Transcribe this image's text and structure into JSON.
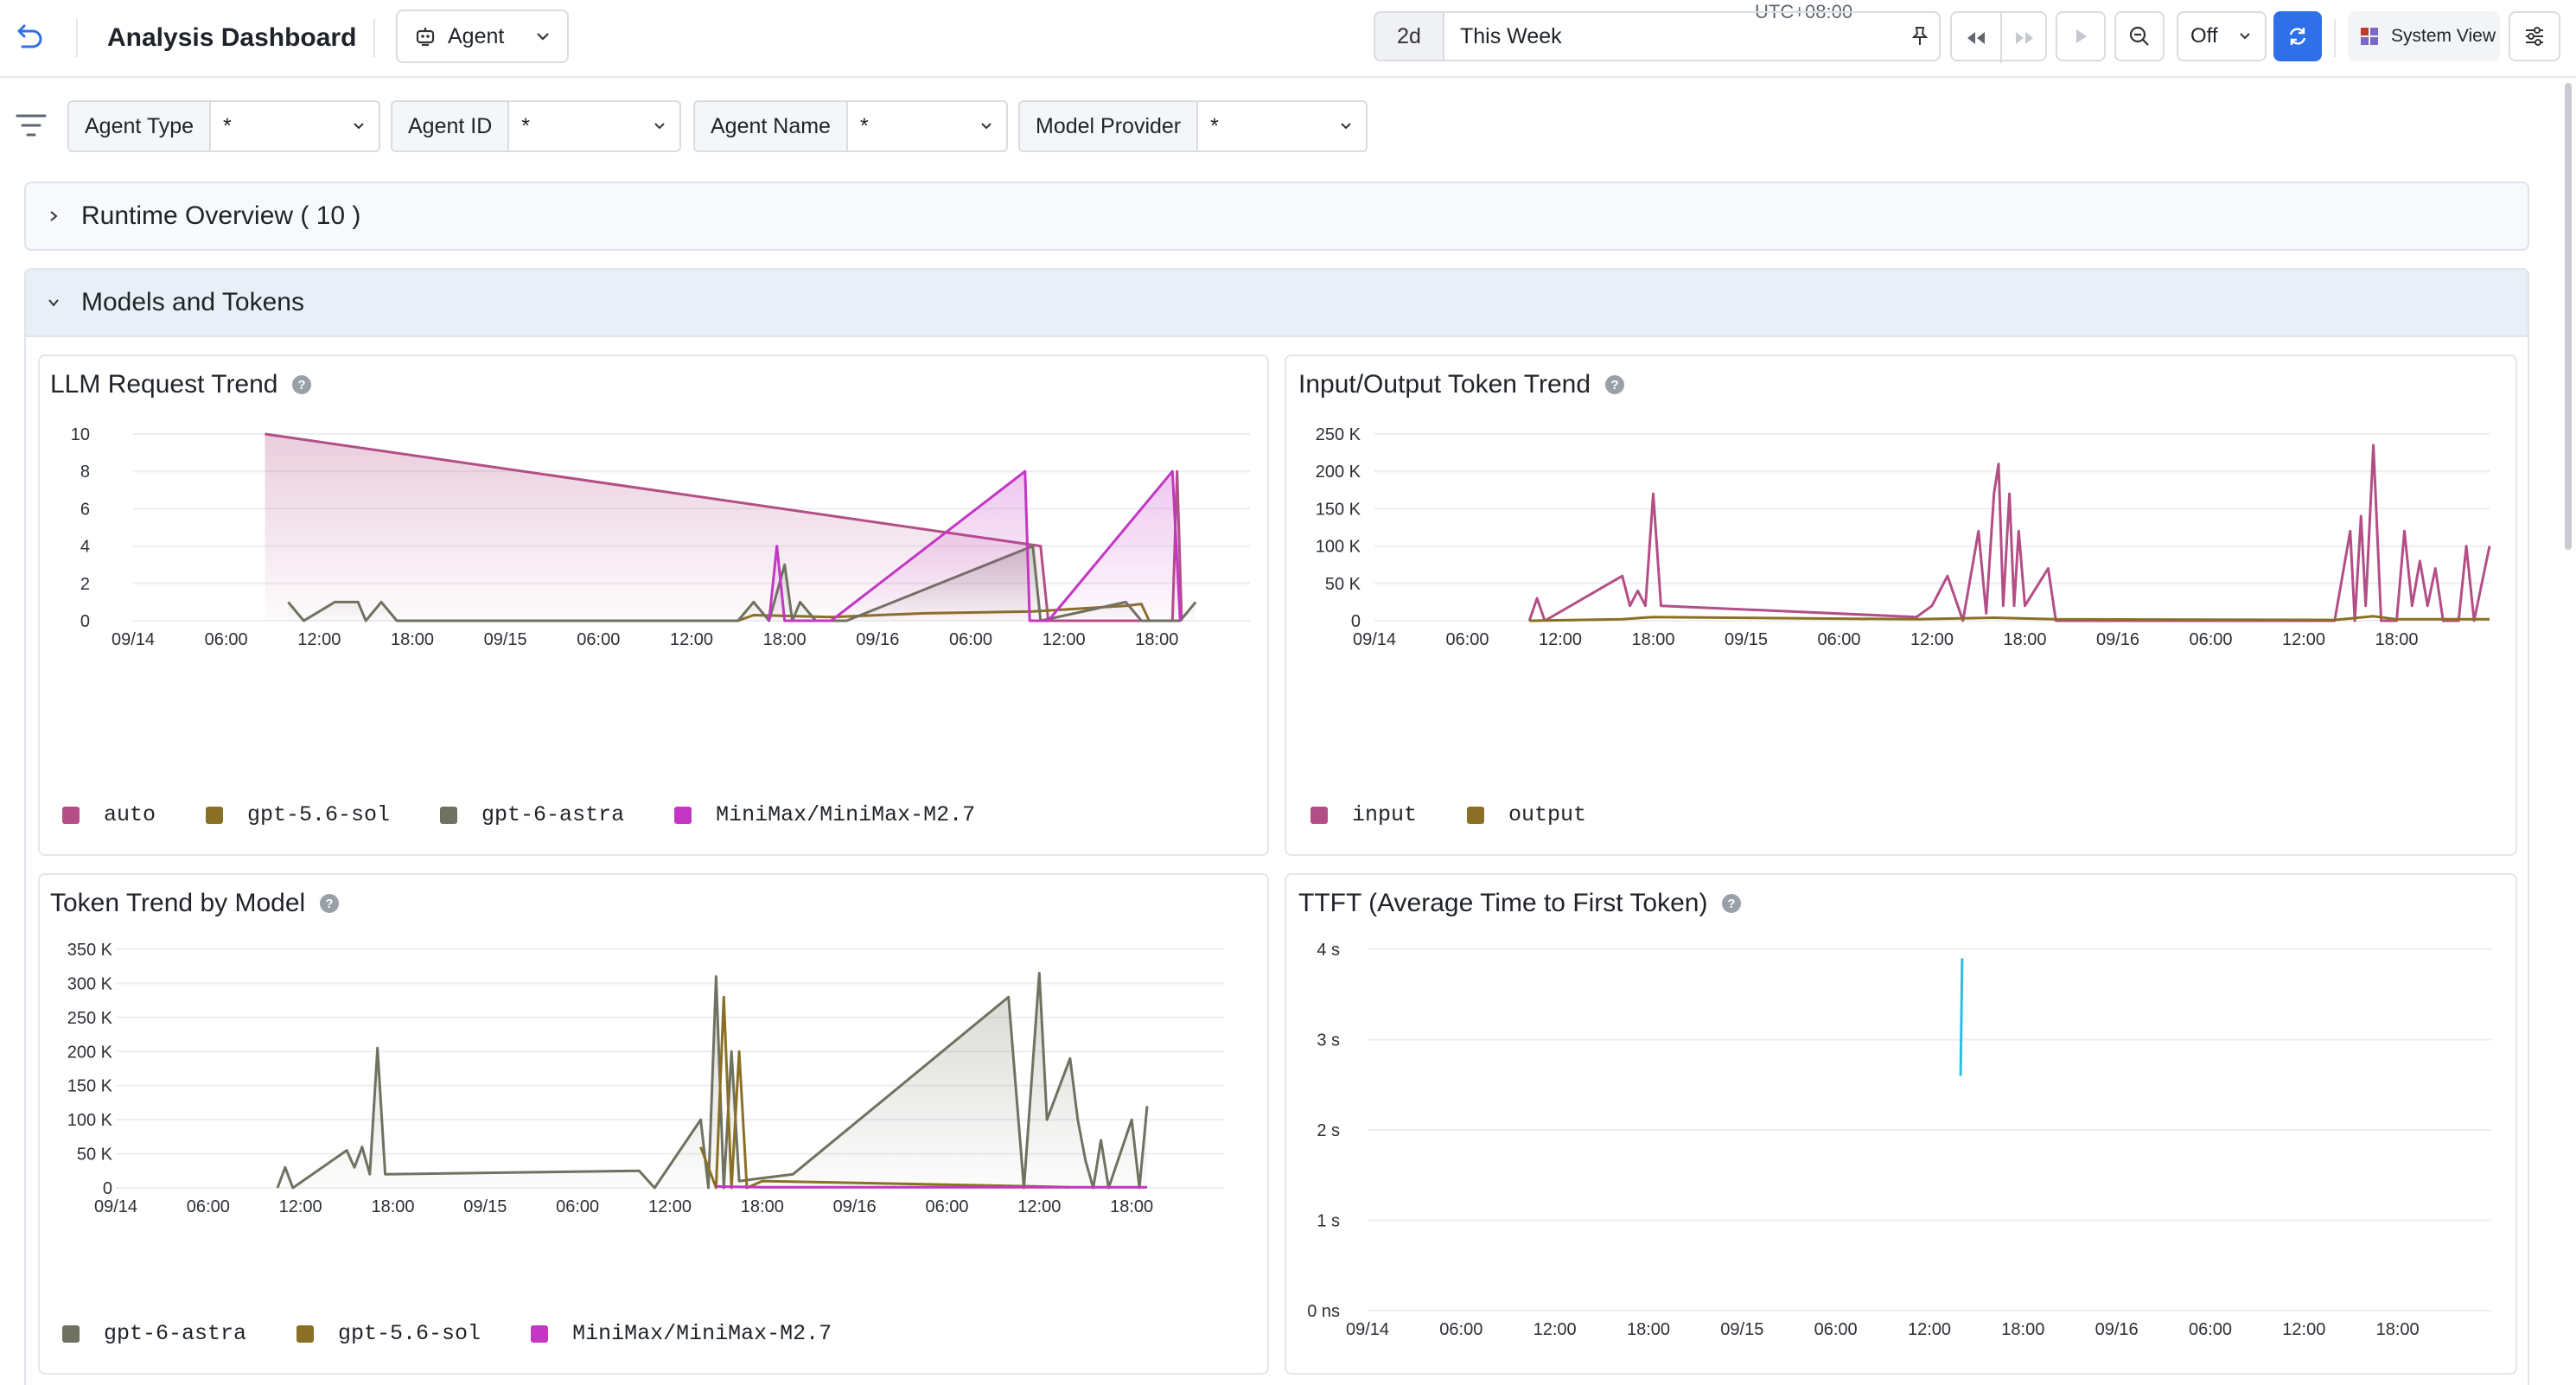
{
  "header": {
    "title": "Analysis Dashboard",
    "entity_select": "Agent",
    "timezone": "UTC+08:00",
    "time_range_short": "2d",
    "time_range_label": "This Week",
    "auto_refresh": "Off",
    "system_view_label": "System View"
  },
  "icons": {
    "back": "undo-arrow-icon",
    "entity": "robot-icon",
    "pin": "pin-icon",
    "rewind": "rewind-icon",
    "fast_forward": "fast-forward-icon",
    "play": "play-icon",
    "zoom_out": "zoom-out-icon",
    "refresh": "refresh-icon",
    "system_view": "grid-icon",
    "settings": "sliders-icon",
    "filter": "filter-icon"
  },
  "filters": [
    {
      "label": "Agent Type",
      "value": "*"
    },
    {
      "label": "Agent ID",
      "value": "*"
    },
    {
      "label": "Agent Name",
      "value": "*"
    },
    {
      "label": "Model Provider",
      "value": "*"
    }
  ],
  "sections": {
    "runtime": {
      "title": "Runtime Overview ( 10 )",
      "expanded": false
    },
    "models": {
      "title": "Models and Tokens",
      "expanded": true
    }
  },
  "colors": {
    "auto": "#b34e86",
    "gpt_5_6_sol": "#8a7024",
    "gpt_6_astra": "#6f7260",
    "minimax": "#c436c4",
    "input": "#b34e86",
    "output": "#8a7024",
    "ttft": "#2fbde0",
    "accent": "#2f6fe8"
  },
  "panels": {
    "llm_request": {
      "title": "LLM Request Trend"
    },
    "io_token": {
      "title": "Input/Output Token Trend"
    },
    "token_by_model": {
      "title": "Token Trend by Model"
    },
    "ttft": {
      "title": "TTFT (Average Time to First Token)"
    }
  },
  "chart_data": [
    {
      "type": "area",
      "title": "LLM Request Trend",
      "x_tick_labels": [
        "09/14",
        "06:00",
        "12:00",
        "18:00",
        "09/15",
        "06:00",
        "12:00",
        "18:00",
        "09/16",
        "06:00",
        "12:00",
        "18:00"
      ],
      "y_tick_labels": [
        "0",
        "2",
        "4",
        "6",
        "8",
        "10"
      ],
      "ylim": [
        0,
        10
      ],
      "x_unit": "hours since 09/14 00:00",
      "series": [
        {
          "name": "auto",
          "points": [
            [
              8.5,
              10
            ],
            [
              58.5,
              4
            ],
            [
              59,
              0
            ],
            [
              67,
              0
            ],
            [
              67.3,
              8
            ],
            [
              67.6,
              0
            ]
          ]
        },
        {
          "name": "gpt-5.6-sol",
          "points": [
            [
              39,
              0
            ],
            [
              40,
              0.3
            ],
            [
              45,
              0.2
            ],
            [
              51,
              0.4
            ],
            [
              58,
              0.5
            ],
            [
              64,
              0.8
            ],
            [
              65,
              0.9
            ],
            [
              65.5,
              0
            ]
          ]
        },
        {
          "name": "gpt-6-astra",
          "points": [
            [
              10,
              1
            ],
            [
              11,
              0
            ],
            [
              13,
              1
            ],
            [
              14.5,
              1
            ],
            [
              15,
              0
            ],
            [
              16,
              1
            ],
            [
              17,
              0
            ],
            [
              39,
              0
            ],
            [
              40,
              1
            ],
            [
              41,
              0
            ],
            [
              42,
              3
            ],
            [
              42.5,
              0
            ],
            [
              43,
              1
            ],
            [
              44,
              0
            ],
            [
              46,
              0
            ],
            [
              58,
              4
            ],
            [
              58.5,
              0
            ],
            [
              64,
              1
            ],
            [
              65,
              0
            ],
            [
              67.5,
              0
            ],
            [
              68.5,
              1
            ]
          ]
        },
        {
          "name": "MiniMax/MiniMax-M2.7",
          "points": [
            [
              41,
              0
            ],
            [
              41.5,
              4
            ],
            [
              42,
              0
            ],
            [
              45,
              0
            ],
            [
              57.5,
              8
            ],
            [
              57.8,
              0
            ],
            [
              59,
              0
            ],
            [
              67,
              8
            ],
            [
              67.5,
              0
            ]
          ]
        }
      ]
    },
    {
      "type": "line",
      "title": "Input/Output Token Trend",
      "x_tick_labels": [
        "09/14",
        "06:00",
        "12:00",
        "18:00",
        "09/15",
        "06:00",
        "12:00",
        "18:00",
        "09/16",
        "06:00",
        "12:00",
        "18:00"
      ],
      "y_tick_labels": [
        "0",
        "50 K",
        "100 K",
        "150 K",
        "200 K",
        "250 K"
      ],
      "ylim": [
        0,
        250000
      ],
      "x_unit": "hours since 09/14 00:00",
      "series": [
        {
          "name": "input",
          "points": [
            [
              10,
              0
            ],
            [
              10.5,
              30000
            ],
            [
              11,
              0
            ],
            [
              16,
              60000
            ],
            [
              16.5,
              20000
            ],
            [
              17,
              40000
            ],
            [
              17.5,
              20000
            ],
            [
              18,
              170000
            ],
            [
              18.5,
              20000
            ],
            [
              35,
              5000
            ],
            [
              36,
              20000
            ],
            [
              37,
              60000
            ],
            [
              38,
              0
            ],
            [
              39,
              120000
            ],
            [
              39.5,
              10000
            ],
            [
              40,
              170000
            ],
            [
              40.3,
              210000
            ],
            [
              40.6,
              20000
            ],
            [
              41,
              170000
            ],
            [
              41.3,
              20000
            ],
            [
              41.6,
              120000
            ],
            [
              42,
              20000
            ],
            [
              43.5,
              70000
            ],
            [
              44,
              0
            ],
            [
              62,
              0
            ],
            [
              63,
              120000
            ],
            [
              63.3,
              0
            ],
            [
              63.7,
              140000
            ],
            [
              64,
              20000
            ],
            [
              64.5,
              235000
            ],
            [
              65,
              0
            ],
            [
              66,
              0
            ],
            [
              66.5,
              120000
            ],
            [
              67,
              20000
            ],
            [
              67.5,
              80000
            ],
            [
              68,
              20000
            ],
            [
              68.5,
              70000
            ],
            [
              69,
              0
            ],
            [
              70,
              0
            ],
            [
              70.5,
              100000
            ],
            [
              71,
              0
            ],
            [
              72,
              100000
            ]
          ]
        },
        {
          "name": "output",
          "points": [
            [
              10,
              0
            ],
            [
              16,
              2000
            ],
            [
              18,
              5000
            ],
            [
              35,
              2000
            ],
            [
              40,
              4000
            ],
            [
              44,
              2000
            ],
            [
              62,
              1000
            ],
            [
              64.5,
              6000
            ],
            [
              66,
              2000
            ],
            [
              72,
              2000
            ]
          ]
        }
      ]
    },
    {
      "type": "area",
      "title": "Token Trend by Model",
      "x_tick_labels": [
        "09/14",
        "06:00",
        "12:00",
        "18:00",
        "09/15",
        "06:00",
        "12:00",
        "18:00",
        "09/16",
        "06:00",
        "12:00",
        "18:00"
      ],
      "y_tick_labels": [
        "0",
        "50 K",
        "100 K",
        "150 K",
        "200 K",
        "250 K",
        "300 K",
        "350 K"
      ],
      "ylim": [
        0,
        350000
      ],
      "x_unit": "hours since 09/14 00:00",
      "series": [
        {
          "name": "gpt-6-astra",
          "points": [
            [
              10.5,
              0
            ],
            [
              11,
              30000
            ],
            [
              11.5,
              0
            ],
            [
              15,
              55000
            ],
            [
              15.5,
              30000
            ],
            [
              16,
              60000
            ],
            [
              16.5,
              20000
            ],
            [
              17,
              205000
            ],
            [
              17.5,
              20000
            ],
            [
              34,
              25000
            ],
            [
              35,
              0
            ],
            [
              38,
              100000
            ],
            [
              38.5,
              0
            ],
            [
              39,
              310000
            ],
            [
              39.5,
              0
            ],
            [
              40,
              200000
            ],
            [
              40.5,
              10000
            ],
            [
              44,
              20000
            ],
            [
              58,
              280000
            ],
            [
              59,
              0
            ],
            [
              60,
              315000
            ],
            [
              60.5,
              100000
            ],
            [
              62,
              190000
            ],
            [
              62.5,
              100000
            ],
            [
              63,
              40000
            ],
            [
              63.5,
              0
            ],
            [
              64,
              70000
            ],
            [
              64.5,
              0
            ],
            [
              66,
              100000
            ],
            [
              66.5,
              0
            ],
            [
              67,
              120000
            ]
          ]
        },
        {
          "name": "gpt-5.6-sol",
          "points": [
            [
              38,
              60000
            ],
            [
              39,
              0
            ],
            [
              39.5,
              280000
            ],
            [
              40,
              0
            ],
            [
              40.5,
              200000
            ],
            [
              41,
              0
            ],
            [
              42,
              10000
            ],
            [
              60,
              2000
            ],
            [
              62,
              1000
            ]
          ]
        },
        {
          "name": "MiniMax/MiniMax-M2.7",
          "points": [
            [
              39,
              2000
            ],
            [
              42,
              1000
            ],
            [
              67,
              1000
            ]
          ]
        }
      ]
    },
    {
      "type": "line",
      "title": "TTFT (Average Time to First Token)",
      "x_tick_labels": [
        "09/14",
        "06:00",
        "12:00",
        "18:00",
        "09/15",
        "06:00",
        "12:00",
        "18:00",
        "09/16",
        "06:00",
        "12:00",
        "18:00"
      ],
      "y_tick_labels": [
        "0 ns",
        "1 s",
        "2 s",
        "3 s",
        "4 s"
      ],
      "ylim": [
        0,
        4
      ],
      "x_unit": "hours since 09/14 00:00",
      "series": [
        {
          "name": "ttft",
          "points": [
            [
              38,
              2.6
            ],
            [
              38.1,
              3.9
            ]
          ]
        }
      ]
    }
  ]
}
